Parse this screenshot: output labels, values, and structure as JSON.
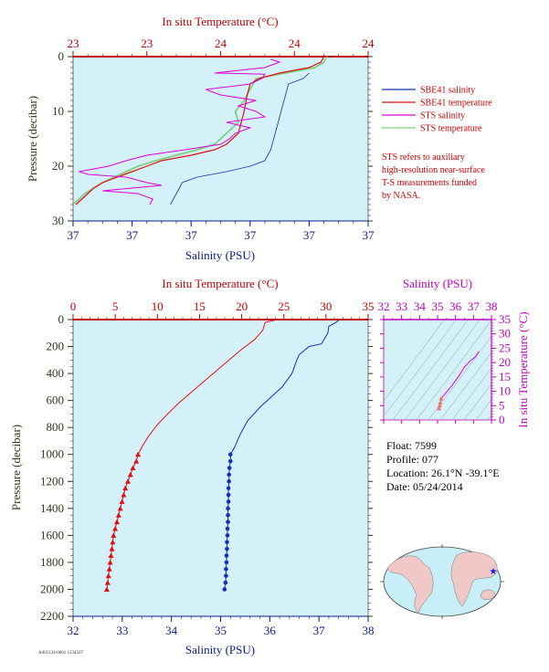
{
  "colors": {
    "plot_bg": "#d4f0f8",
    "salinity": "#1030c0",
    "temperature": "#e01010",
    "sts_salinity": "#e000e0",
    "sts_temperature": "#80d080",
    "pressure_axis": "#2a3a1a",
    "salinity_axis": "#0a1a8a",
    "temperature_axis": "#c00000",
    "ts_axis": "#c000c0"
  },
  "top_panel": {
    "temp_title": "In situ Temperature (°C)",
    "temp_ticks": [
      "23",
      "23",
      "24",
      "24",
      "24"
    ],
    "sal_title": "Salinity (PSU)",
    "sal_ticks": [
      "37",
      "37",
      "37",
      "37",
      "37",
      "37"
    ],
    "pressure_title": "Pressure (decibar)",
    "pressure_ticks": [
      "0",
      "10",
      "20",
      "30"
    ]
  },
  "legend": {
    "items": [
      {
        "label": "SBE41 salinity",
        "color": "#1030c0"
      },
      {
        "label": "SBE41 temperature",
        "color": "#e01010"
      },
      {
        "label": "STS salinity",
        "color": "#e000e0"
      },
      {
        "label": "STS temperature",
        "color": "#80d080"
      }
    ],
    "note": [
      "STS refers to auxiliary",
      "high-resolution near-surface",
      "T-S measurements funded",
      "by NASA."
    ]
  },
  "bottom_panel": {
    "temp_title": "In situ Temperature (°C)",
    "temp_ticks": [
      "0",
      "5",
      "10",
      "15",
      "20",
      "25",
      "30",
      "35"
    ],
    "sal_title": "Salinity (PSU)",
    "sal_ticks": [
      "32",
      "33",
      "34",
      "35",
      "36",
      "37",
      "38"
    ],
    "pressure_title": "Pressure (decibar)",
    "pressure_ticks": [
      "0",
      "200",
      "400",
      "600",
      "800",
      "1000",
      "1200",
      "1400",
      "1600",
      "1800",
      "2000",
      "2200"
    ]
  },
  "ts_panel": {
    "sal_title": "Salinity (PSU)",
    "sal_ticks": [
      "32",
      "33",
      "34",
      "35",
      "36",
      "37",
      "38"
    ],
    "temp_title": "In situ Temperature (°C)",
    "temp_ticks": [
      "0",
      "5",
      "10",
      "15",
      "20",
      "25",
      "30",
      "35"
    ]
  },
  "info": {
    "float": "Float:  7599",
    "profile": "Profile:  077",
    "location": "Location:  26.1°N  -39.1°E",
    "date": "Date:  05/24/2014"
  },
  "footer": "A001234-0001 1234567",
  "chart_data": [
    {
      "type": "line",
      "name": "near-surface profile",
      "ylim": [
        30,
        0
      ],
      "x_sal_lim": [
        36.6,
        37.6
      ],
      "x_temp_lim": [
        23.0,
        24.0
      ],
      "series": [
        {
          "name": "SBE41 salinity",
          "axis": "salinity",
          "points": [
            [
              37.4,
              3
            ],
            [
              37.38,
              4
            ],
            [
              37.33,
              5
            ],
            [
              37.32,
              7
            ],
            [
              37.31,
              9
            ],
            [
              37.3,
              11
            ],
            [
              37.29,
              13
            ],
            [
              37.28,
              15
            ],
            [
              37.27,
              17
            ],
            [
              37.25,
              19
            ],
            [
              37.2,
              20
            ],
            [
              37.12,
              21
            ],
            [
              37.02,
              22
            ],
            [
              36.97,
              23
            ],
            [
              36.96,
              24
            ],
            [
              36.95,
              25
            ],
            [
              36.94,
              26
            ],
            [
              36.93,
              27
            ]
          ]
        },
        {
          "name": "SBE41 temperature",
          "axis": "temperature",
          "points": [
            [
              23.85,
              0
            ],
            [
              23.84,
              1
            ],
            [
              23.8,
              2
            ],
            [
              23.7,
              3
            ],
            [
              23.63,
              4
            ],
            [
              23.6,
              5
            ],
            [
              23.59,
              7
            ],
            [
              23.58,
              10
            ],
            [
              23.57,
              12
            ],
            [
              23.56,
              14
            ],
            [
              23.52,
              16
            ],
            [
              23.48,
              17
            ],
            [
              23.4,
              18
            ],
            [
              23.3,
              19
            ],
            [
              23.25,
              20
            ],
            [
              23.2,
              21
            ],
            [
              23.15,
              22
            ],
            [
              23.1,
              23
            ],
            [
              23.07,
              24
            ],
            [
              23.05,
              25
            ],
            [
              23.03,
              26
            ],
            [
              23.01,
              27
            ]
          ]
        },
        {
          "name": "STS salinity",
          "axis": "salinity",
          "points": [
            [
              37.27,
              0.5
            ],
            [
              37.3,
              1
            ],
            [
              37.25,
              2
            ],
            [
              37.08,
              3
            ],
            [
              37.25,
              3.2
            ],
            [
              37.24,
              4
            ],
            [
              37.2,
              5
            ],
            [
              37.05,
              6
            ],
            [
              37.1,
              7
            ],
            [
              37.22,
              8
            ],
            [
              37.16,
              9
            ],
            [
              37.22,
              10
            ],
            [
              37.25,
              11
            ],
            [
              37.12,
              12
            ],
            [
              37.2,
              13
            ],
            [
              37.15,
              14
            ],
            [
              37.13,
              15
            ],
            [
              37.1,
              16
            ],
            [
              36.98,
              17
            ],
            [
              36.85,
              18
            ],
            [
              36.78,
              19
            ],
            [
              36.72,
              20
            ],
            [
              36.62,
              21
            ],
            [
              36.65,
              21.5
            ],
            [
              36.78,
              22
            ],
            [
              36.85,
              23
            ],
            [
              36.9,
              23.5
            ],
            [
              36.8,
              24
            ],
            [
              36.7,
              24.5
            ],
            [
              36.82,
              25
            ],
            [
              36.87,
              26
            ],
            [
              36.86,
              27
            ]
          ]
        },
        {
          "name": "STS temperature",
          "axis": "temperature",
          "points": [
            [
              23.86,
              0
            ],
            [
              23.85,
              1
            ],
            [
              23.82,
              2
            ],
            [
              23.72,
              3
            ],
            [
              23.62,
              4
            ],
            [
              23.6,
              6
            ],
            [
              23.58,
              8
            ],
            [
              23.55,
              10
            ],
            [
              23.56,
              12
            ],
            [
              23.52,
              14
            ],
            [
              23.48,
              16
            ],
            [
              23.42,
              17
            ],
            [
              23.35,
              18
            ],
            [
              23.28,
              19
            ],
            [
              23.22,
              20
            ],
            [
              23.18,
              21
            ],
            [
              23.14,
              22
            ],
            [
              23.1,
              23
            ],
            [
              23.07,
              24
            ],
            [
              23.04,
              25
            ],
            [
              23.02,
              26
            ],
            [
              23.0,
              27
            ]
          ]
        }
      ]
    },
    {
      "type": "line",
      "name": "full-depth profile",
      "ylim": [
        2200,
        0
      ],
      "x_sal_lim": [
        32,
        38
      ],
      "x_temp_lim": [
        0,
        35
      ],
      "series": [
        {
          "name": "SBE41 salinity",
          "axis": "salinity",
          "points": [
            [
              37.4,
              5
            ],
            [
              37.35,
              20
            ],
            [
              37.2,
              50
            ],
            [
              37.18,
              100
            ],
            [
              37.05,
              180
            ],
            [
              36.8,
              200
            ],
            [
              36.6,
              260
            ],
            [
              36.55,
              300
            ],
            [
              36.45,
              400
            ],
            [
              36.25,
              500
            ],
            [
              36.1,
              550
            ],
            [
              35.8,
              650
            ],
            [
              35.55,
              750
            ],
            [
              35.4,
              850
            ],
            [
              35.28,
              950
            ],
            [
              35.2,
              1000
            ],
            [
              35.2,
              1050
            ],
            [
              35.18,
              1100
            ],
            [
              35.17,
              1150
            ],
            [
              35.17,
              1200
            ],
            [
              35.16,
              1250
            ],
            [
              35.16,
              1300
            ],
            [
              35.16,
              1350
            ],
            [
              35.15,
              1400
            ],
            [
              35.15,
              1450
            ],
            [
              35.15,
              1500
            ],
            [
              35.14,
              1550
            ],
            [
              35.14,
              1600
            ],
            [
              35.13,
              1650
            ],
            [
              35.13,
              1700
            ],
            [
              35.12,
              1750
            ],
            [
              35.12,
              1800
            ],
            [
              35.11,
              1850
            ],
            [
              35.11,
              1900
            ],
            [
              35.1,
              1950
            ],
            [
              35.08,
              2000
            ]
          ]
        },
        {
          "name": "SBE41 temperature",
          "axis": "temperature",
          "points": [
            [
              23.9,
              5
            ],
            [
              22.8,
              20
            ],
            [
              22.5,
              80
            ],
            [
              21.5,
              150
            ],
            [
              20.0,
              220
            ],
            [
              18.5,
              300
            ],
            [
              17.0,
              380
            ],
            [
              15.5,
              460
            ],
            [
              14.0,
              540
            ],
            [
              12.5,
              620
            ],
            [
              11.2,
              700
            ],
            [
              10.0,
              780
            ],
            [
              9.0,
              860
            ],
            [
              8.2,
              940
            ],
            [
              7.7,
              1000
            ],
            [
              7.5,
              1050
            ],
            [
              7.1,
              1100
            ],
            [
              6.8,
              1150
            ],
            [
              6.5,
              1200
            ],
            [
              6.2,
              1250
            ],
            [
              6.0,
              1300
            ],
            [
              5.8,
              1350
            ],
            [
              5.6,
              1400
            ],
            [
              5.4,
              1450
            ],
            [
              5.2,
              1500
            ],
            [
              5.0,
              1550
            ],
            [
              4.8,
              1600
            ],
            [
              4.7,
              1650
            ],
            [
              4.6,
              1700
            ],
            [
              4.5,
              1750
            ],
            [
              4.4,
              1800
            ],
            [
              4.3,
              1850
            ],
            [
              4.2,
              1900
            ],
            [
              4.1,
              1950
            ],
            [
              4.0,
              2000
            ]
          ]
        }
      ]
    },
    {
      "type": "scatter",
      "name": "T-S diagram",
      "xlim": [
        32,
        38
      ],
      "ylim": [
        0,
        35
      ],
      "series": [
        {
          "name": "T-S",
          "points": [
            [
              37.3,
              23.9
            ],
            [
              37.1,
              22.0
            ],
            [
              36.8,
              20.5
            ],
            [
              36.5,
              18.5
            ],
            [
              36.2,
              15.5
            ],
            [
              35.8,
              12.0
            ],
            [
              35.4,
              9.0
            ],
            [
              35.2,
              7.5
            ],
            [
              35.15,
              6.0
            ],
            [
              35.12,
              5.0
            ],
            [
              35.08,
              4.0
            ]
          ]
        }
      ]
    }
  ]
}
